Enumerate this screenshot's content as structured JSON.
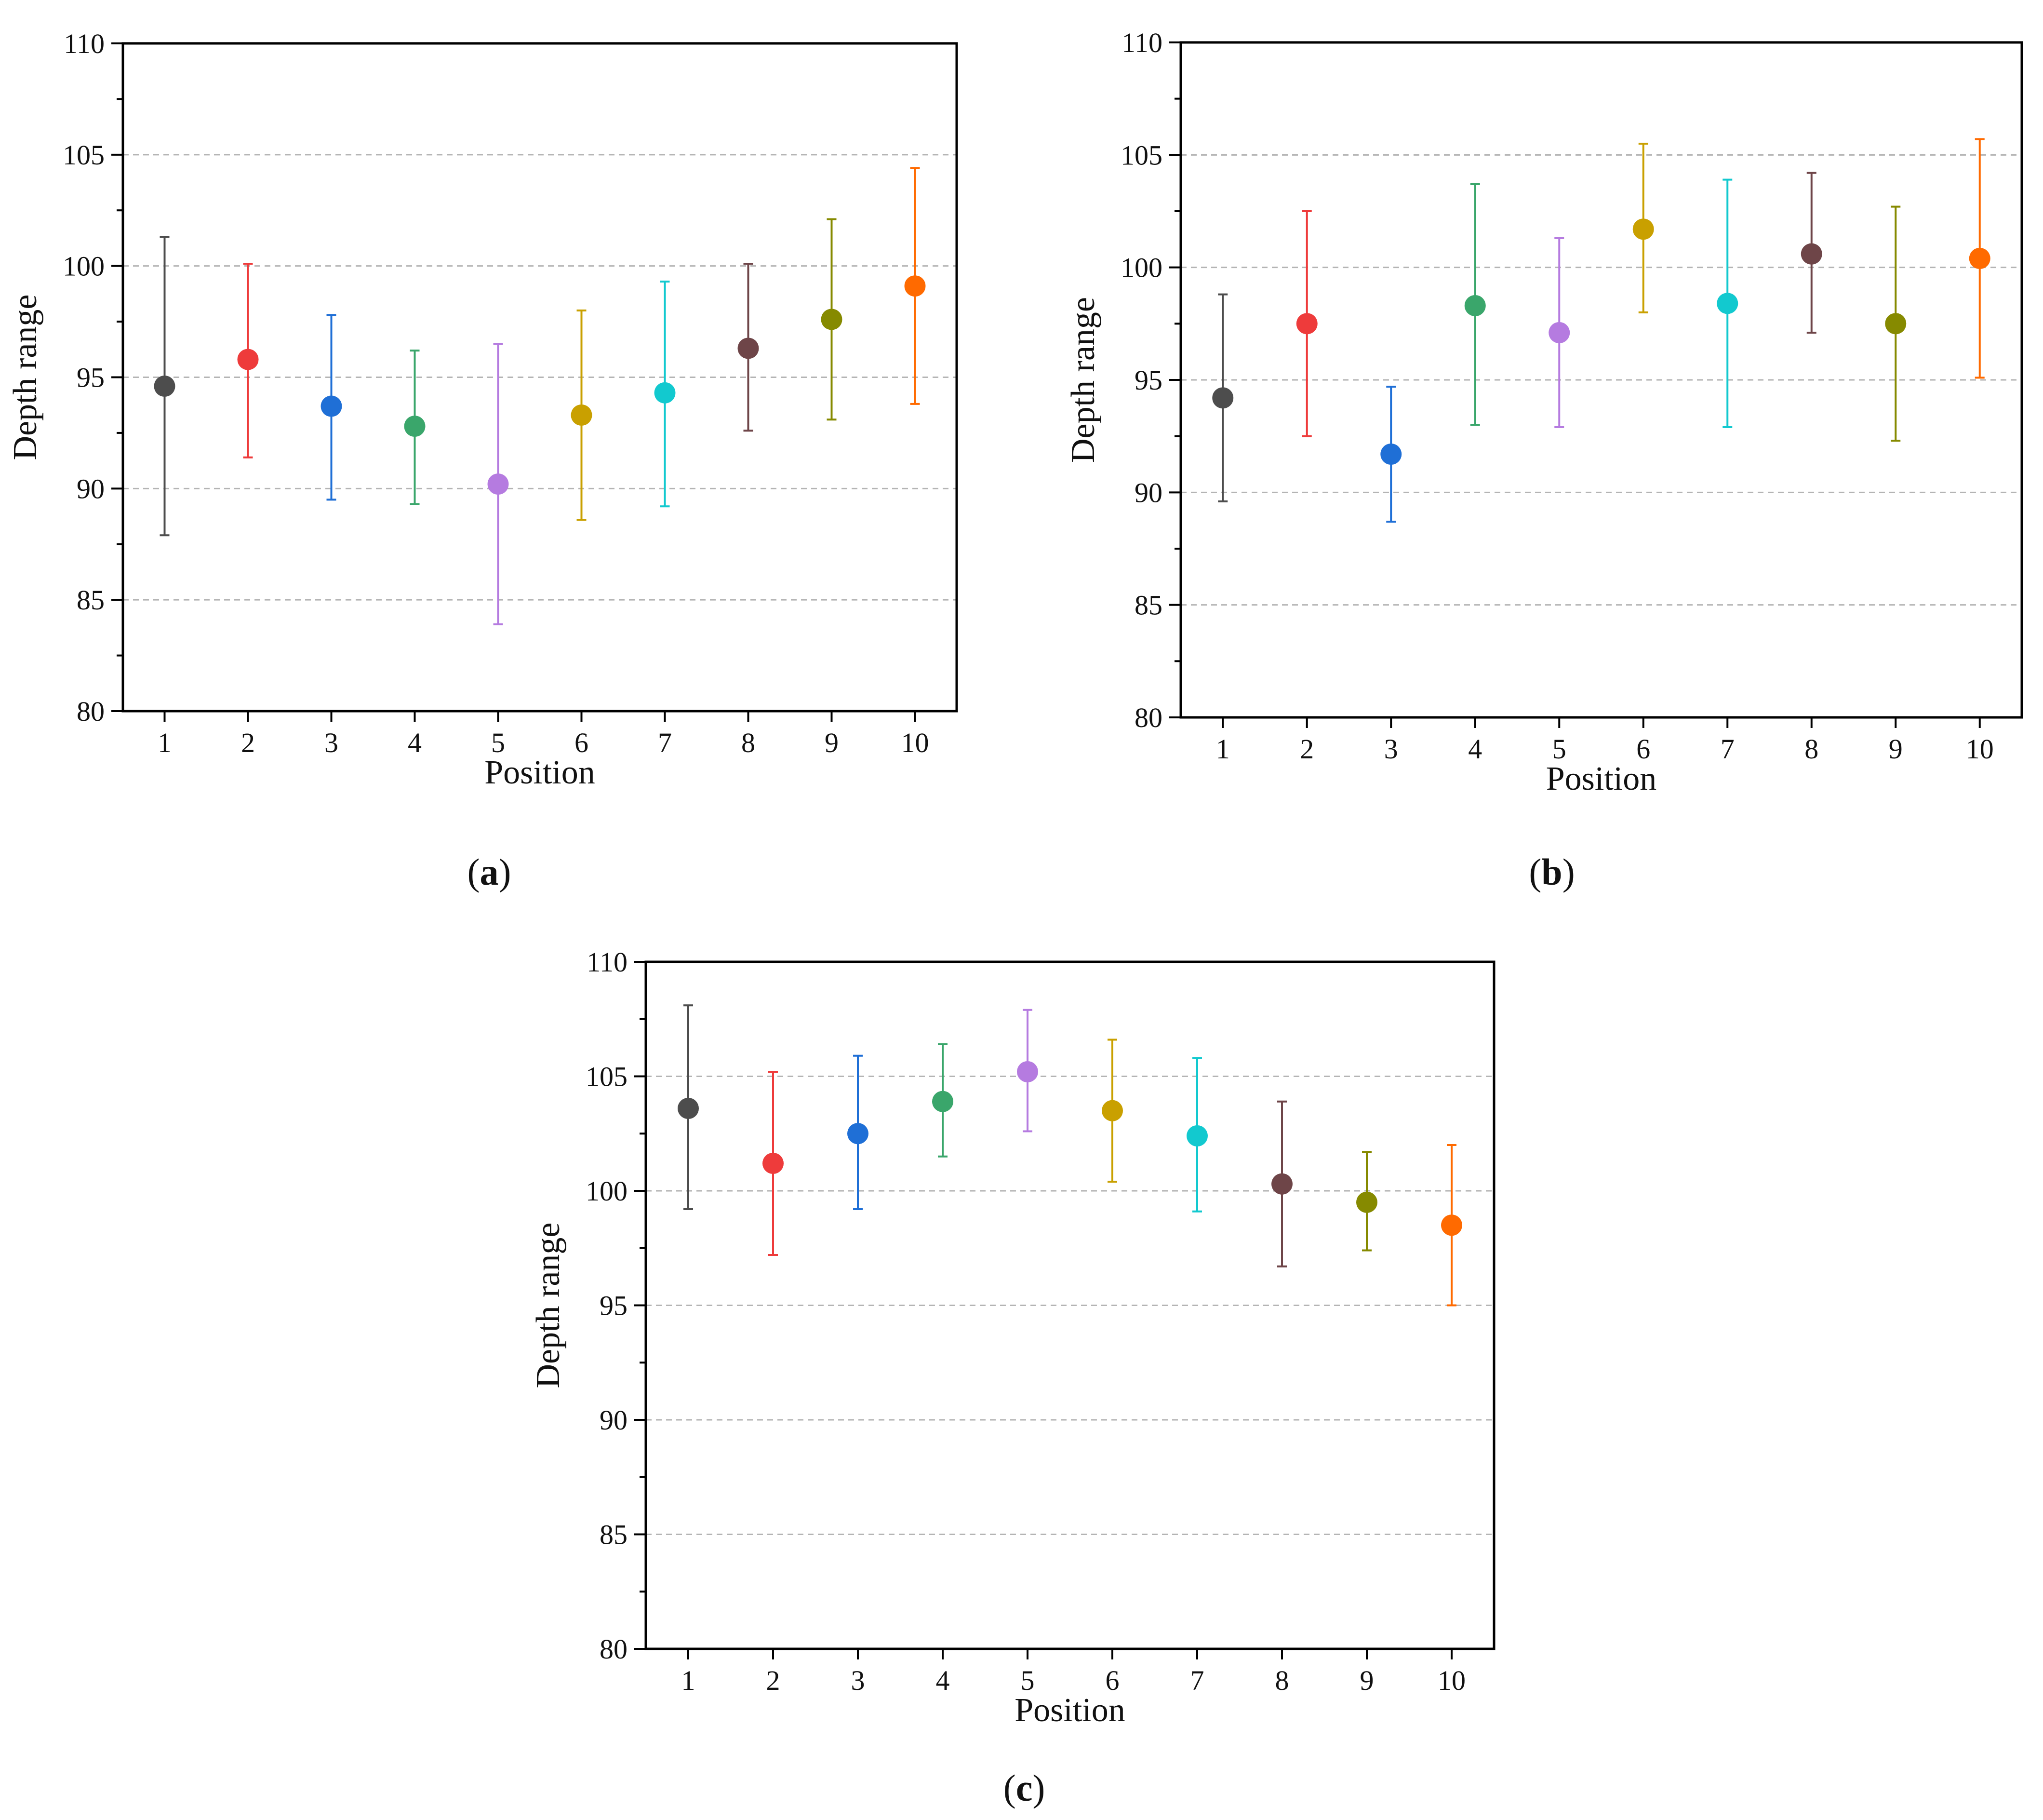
{
  "chart_data": [
    {
      "type": "scatter",
      "panel_label": "a",
      "xlabel": "Position",
      "ylabel": "Depth range",
      "ylim": [
        80,
        110
      ],
      "yticks": [
        80,
        85,
        90,
        95,
        100,
        105,
        110
      ],
      "categories": [
        "1",
        "2",
        "3",
        "4",
        "5",
        "6",
        "7",
        "8",
        "9",
        "10"
      ],
      "grid": "horizontal dashed",
      "legend": "none",
      "points": [
        {
          "x": "1",
          "mean": 94.6,
          "lower": 87.9,
          "upper": 101.3,
          "color": "#4d4d4d"
        },
        {
          "x": "2",
          "mean": 95.8,
          "lower": 91.4,
          "upper": 100.1,
          "color": "#ee3b3b"
        },
        {
          "x": "3",
          "mean": 93.7,
          "lower": 89.5,
          "upper": 97.8,
          "color": "#1f6fd6"
        },
        {
          "x": "4",
          "mean": 92.8,
          "lower": 89.3,
          "upper": 96.2,
          "color": "#3aa66b"
        },
        {
          "x": "5",
          "mean": 90.2,
          "lower": 83.9,
          "upper": 96.5,
          "color": "#b57be0"
        },
        {
          "x": "6",
          "mean": 93.3,
          "lower": 88.6,
          "upper": 98.0,
          "color": "#c9a000"
        },
        {
          "x": "7",
          "mean": 94.3,
          "lower": 89.2,
          "upper": 99.3,
          "color": "#12c9cf"
        },
        {
          "x": "8",
          "mean": 96.3,
          "lower": 92.6,
          "upper": 100.1,
          "color": "#6e4548"
        },
        {
          "x": "9",
          "mean": 97.6,
          "lower": 93.1,
          "upper": 102.1,
          "color": "#868a00"
        },
        {
          "x": "10",
          "mean": 99.1,
          "lower": 93.8,
          "upper": 104.4,
          "color": "#ff6a00"
        }
      ]
    },
    {
      "type": "scatter",
      "panel_label": "b",
      "xlabel": "Position",
      "ylabel": "Depth range",
      "ylim": [
        80,
        110
      ],
      "yticks": [
        80,
        85,
        90,
        95,
        100,
        105,
        110
      ],
      "categories": [
        "1",
        "2",
        "3",
        "4",
        "5",
        "6",
        "7",
        "8",
        "9",
        "10"
      ],
      "grid": "horizontal dashed",
      "legend": "none",
      "points": [
        {
          "x": "1",
          "mean": 94.2,
          "lower": 89.6,
          "upper": 98.8,
          "color": "#4d4d4d"
        },
        {
          "x": "2",
          "mean": 97.5,
          "lower": 92.5,
          "upper": 102.5,
          "color": "#ee3b3b"
        },
        {
          "x": "3",
          "mean": 91.7,
          "lower": 88.7,
          "upper": 94.7,
          "color": "#1f6fd6"
        },
        {
          "x": "4",
          "mean": 98.3,
          "lower": 93.0,
          "upper": 103.7,
          "color": "#3aa66b"
        },
        {
          "x": "5",
          "mean": 97.1,
          "lower": 92.9,
          "upper": 101.3,
          "color": "#b57be0"
        },
        {
          "x": "6",
          "mean": 101.7,
          "lower": 98.0,
          "upper": 105.5,
          "color": "#c9a000"
        },
        {
          "x": "7",
          "mean": 98.4,
          "lower": 92.9,
          "upper": 103.9,
          "color": "#12c9cf"
        },
        {
          "x": "8",
          "mean": 100.6,
          "lower": 97.1,
          "upper": 104.2,
          "color": "#6e4548"
        },
        {
          "x": "9",
          "mean": 97.5,
          "lower": 92.3,
          "upper": 102.7,
          "color": "#868a00"
        },
        {
          "x": "10",
          "mean": 100.4,
          "lower": 95.1,
          "upper": 105.7,
          "color": "#ff6a00"
        }
      ]
    },
    {
      "type": "scatter",
      "panel_label": "c",
      "xlabel": "Position",
      "ylabel": "Depth range",
      "ylim": [
        80,
        110
      ],
      "yticks": [
        80,
        85,
        90,
        95,
        100,
        105,
        110
      ],
      "categories": [
        "1",
        "2",
        "3",
        "4",
        "5",
        "6",
        "7",
        "8",
        "9",
        "10"
      ],
      "grid": "horizontal dashed",
      "legend": "none",
      "points": [
        {
          "x": "1",
          "mean": 103.6,
          "lower": 99.2,
          "upper": 108.1,
          "color": "#4d4d4d"
        },
        {
          "x": "2",
          "mean": 101.2,
          "lower": 97.2,
          "upper": 105.2,
          "color": "#ee3b3b"
        },
        {
          "x": "3",
          "mean": 102.5,
          "lower": 99.2,
          "upper": 105.9,
          "color": "#1f6fd6"
        },
        {
          "x": "4",
          "mean": 103.9,
          "lower": 101.5,
          "upper": 106.4,
          "color": "#3aa66b"
        },
        {
          "x": "5",
          "mean": 105.2,
          "lower": 102.6,
          "upper": 107.9,
          "color": "#b57be0"
        },
        {
          "x": "6",
          "mean": 103.5,
          "lower": 100.4,
          "upper": 106.6,
          "color": "#c9a000"
        },
        {
          "x": "7",
          "mean": 102.4,
          "lower": 99.1,
          "upper": 105.8,
          "color": "#12c9cf"
        },
        {
          "x": "8",
          "mean": 100.3,
          "lower": 96.7,
          "upper": 103.9,
          "color": "#6e4548"
        },
        {
          "x": "9",
          "mean": 99.5,
          "lower": 97.4,
          "upper": 101.7,
          "color": "#868a00"
        },
        {
          "x": "10",
          "mean": 98.5,
          "lower": 95.0,
          "upper": 102.0,
          "color": "#ff6a00"
        }
      ]
    }
  ],
  "captions": [
    {
      "open": "(",
      "letter": "a",
      "close": ")"
    },
    {
      "open": "(",
      "letter": "b",
      "close": ")"
    },
    {
      "open": "(",
      "letter": "c",
      "close": ")"
    }
  ],
  "colors": {
    "axis": "#000000",
    "grid": "#b4b4b4",
    "text": "#111111"
  }
}
